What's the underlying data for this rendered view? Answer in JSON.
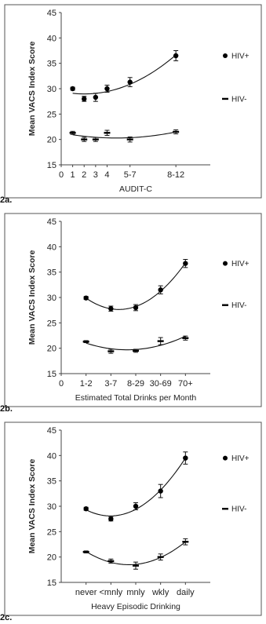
{
  "chart_data": [
    {
      "type": "scatter",
      "panel_label": "2a.",
      "ylabel": "Mean VACS Index Score",
      "xlabel": "AUDIT-C",
      "ylim": [
        15,
        45
      ],
      "yticks": [
        15,
        20,
        25,
        30,
        35,
        40,
        45
      ],
      "xlim": [
        0,
        13
      ],
      "xticks": [
        {
          "x": 0,
          "label": "0"
        },
        {
          "x": 1,
          "label": "1"
        },
        {
          "x": 2,
          "label": "2"
        },
        {
          "x": 3,
          "label": "3"
        },
        {
          "x": 4,
          "label": "4"
        },
        {
          "x": 6,
          "label": "5-7"
        },
        {
          "x": 10,
          "label": "8-12"
        }
      ],
      "series": [
        {
          "name": "HIV+",
          "marker": "circle",
          "points": [
            {
              "x": 1,
              "y": 30.0,
              "err": 0.3
            },
            {
              "x": 2,
              "y": 28.0,
              "err": 0.5
            },
            {
              "x": 3,
              "y": 28.3,
              "err": 0.8
            },
            {
              "x": 4,
              "y": 30.0,
              "err": 0.7
            },
            {
              "x": 6,
              "y": 31.3,
              "err": 0.9
            },
            {
              "x": 10,
              "y": 36.5,
              "err": 1.0
            }
          ]
        },
        {
          "name": "HIV-",
          "marker": "dash",
          "points": [
            {
              "x": 1,
              "y": 21.3,
              "err": 0.3
            },
            {
              "x": 2,
              "y": 20.0,
              "err": 0.4
            },
            {
              "x": 3,
              "y": 20.0,
              "err": 0.4
            },
            {
              "x": 4,
              "y": 21.3,
              "err": 0.5
            },
            {
              "x": 6,
              "y": 20.0,
              "err": 0.5
            },
            {
              "x": 10,
              "y": 21.5,
              "err": 0.4
            }
          ]
        }
      ]
    },
    {
      "type": "scatter",
      "panel_label": "2b.",
      "ylabel": "Mean VACS Index Score",
      "xlabel": "Estimated Total Drinks per Month",
      "ylim": [
        15,
        45
      ],
      "yticks": [
        15,
        20,
        25,
        30,
        35,
        40,
        45
      ],
      "xlim": [
        0,
        6
      ],
      "xticks": [
        {
          "x": 0,
          "label": "0"
        },
        {
          "x": 1,
          "label": "1-2"
        },
        {
          "x": 2,
          "label": "3-7"
        },
        {
          "x": 3,
          "label": "8-29"
        },
        {
          "x": 4,
          "label": "30-69"
        },
        {
          "x": 5,
          "label": "70+"
        }
      ],
      "series": [
        {
          "name": "HIV+",
          "marker": "circle",
          "points": [
            {
              "x": 1,
              "y": 29.9,
              "err": 0.3
            },
            {
              "x": 2,
              "y": 27.8,
              "err": 0.5
            },
            {
              "x": 3,
              "y": 28.0,
              "err": 0.6
            },
            {
              "x": 4,
              "y": 31.5,
              "err": 0.8
            },
            {
              "x": 5,
              "y": 36.7,
              "err": 0.8
            }
          ]
        },
        {
          "name": "HIV-",
          "marker": "dash",
          "points": [
            {
              "x": 1,
              "y": 21.3,
              "err": 0.2
            },
            {
              "x": 2,
              "y": 19.4,
              "err": 0.4
            },
            {
              "x": 3,
              "y": 19.5,
              "err": 0.3
            },
            {
              "x": 4,
              "y": 21.4,
              "err": 0.7
            },
            {
              "x": 5,
              "y": 22.0,
              "err": 0.4
            }
          ]
        }
      ]
    },
    {
      "type": "scatter",
      "panel_label": "2c.",
      "ylabel": "Mean VACS Index Score",
      "xlabel": "Heavy Episodic Drinking",
      "ylim": [
        15,
        45
      ],
      "yticks": [
        15,
        20,
        25,
        30,
        35,
        40,
        45
      ],
      "xlim": [
        0,
        6
      ],
      "xticks": [
        {
          "x": 1,
          "label": "never"
        },
        {
          "x": 2,
          "label": "<mnly"
        },
        {
          "x": 3,
          "label": "mnly"
        },
        {
          "x": 4,
          "label": "wkly"
        },
        {
          "x": 5,
          "label": "daily"
        }
      ],
      "series": [
        {
          "name": "HIV+",
          "marker": "circle",
          "points": [
            {
              "x": 1,
              "y": 29.5,
              "err": 0.3
            },
            {
              "x": 2,
              "y": 27.5,
              "err": 0.4
            },
            {
              "x": 3,
              "y": 30.0,
              "err": 0.7
            },
            {
              "x": 4,
              "y": 33.0,
              "err": 1.3
            },
            {
              "x": 5,
              "y": 39.5,
              "err": 1.2
            }
          ]
        },
        {
          "name": "HIV-",
          "marker": "dash",
          "points": [
            {
              "x": 1,
              "y": 21.0,
              "err": 0.2
            },
            {
              "x": 2,
              "y": 19.2,
              "err": 0.4
            },
            {
              "x": 3,
              "y": 18.3,
              "err": 0.7
            },
            {
              "x": 4,
              "y": 20.0,
              "err": 0.6
            },
            {
              "x": 5,
              "y": 23.0,
              "err": 0.6
            }
          ]
        }
      ]
    }
  ]
}
